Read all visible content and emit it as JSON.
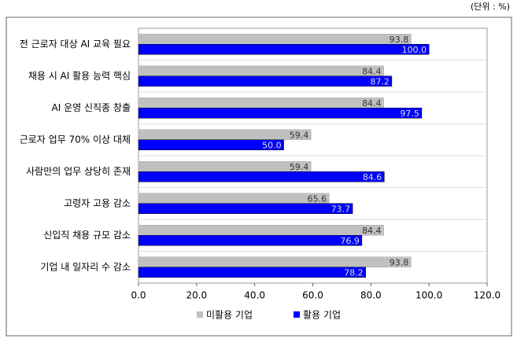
{
  "chart_data": {
    "type": "bar",
    "orientation": "horizontal",
    "unit_label": "(단위 : %)",
    "categories": [
      "전 근로자 대상 AI 교육 필요",
      "채용 시 AI 활용 능력 핵심",
      "AI 운영 신직종 창출",
      "근로자 업무 70% 이상 대체",
      "사람만의 업무 상당히 존재",
      "고령자 고용 감소",
      "신입직 채용 규모 감소",
      "기업 내 일자리 수 감소"
    ],
    "series": [
      {
        "name": "미활용 기업",
        "color": "#c0c0c0",
        "values": [
          93.8,
          84.4,
          84.4,
          59.4,
          59.4,
          65.6,
          84.4,
          93.8
        ],
        "value_labels": [
          "93.8",
          "84.4",
          "84.4",
          "59.4",
          "59.4",
          "65.6",
          "84.4",
          "93.8"
        ]
      },
      {
        "name": "활용 기업",
        "color": "#0000ff",
        "values": [
          100,
          87.2,
          97.5,
          50,
          84.6,
          73.7,
          76.9,
          78.2
        ],
        "value_labels": [
          "100.0",
          "87.2",
          "97.5",
          "50.0",
          "84.6",
          "73.7",
          "76.9",
          "78.2"
        ]
      }
    ],
    "xlim": [
      0,
      120
    ],
    "xticks": [
      {
        "value": 0,
        "label": "0.0"
      },
      {
        "value": 20,
        "label": "20.0"
      },
      {
        "value": 40,
        "label": "40.0"
      },
      {
        "value": 60,
        "label": "60.0"
      },
      {
        "value": 80,
        "label": "80.0"
      },
      {
        "value": 100,
        "label": "100.0"
      },
      {
        "value": 120,
        "label": "120.0"
      }
    ],
    "legend": "bottom"
  }
}
